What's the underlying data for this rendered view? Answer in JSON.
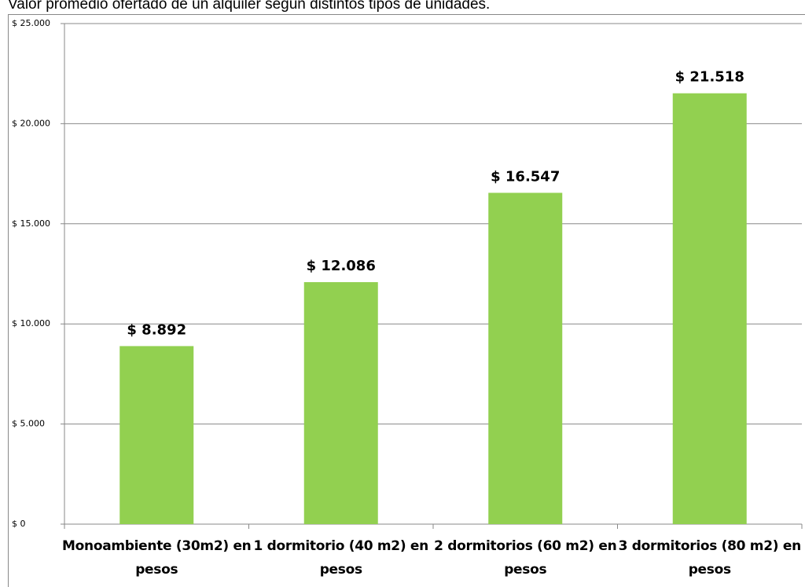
{
  "chart_data": {
    "type": "bar",
    "title": "Valor promedio ofertado de un alquiler según distintos tipos de unidades.",
    "categories": [
      "Monoambiente (30m2) en pesos",
      "1 dormitorio (40 m2) en pesos",
      "2 dormitorios (60 m2) en pesos",
      "3 dormitorios (80 m2) en pesos"
    ],
    "values": [
      8892,
      12086,
      16547,
      21518
    ],
    "value_labels": [
      "$ 8.892",
      "$ 12.086",
      "$ 16.547",
      "$ 21.518"
    ],
    "color": "#92d050",
    "ylim": [
      0,
      25000
    ],
    "yticks": [
      {
        "value": 0,
        "label": "$ 0"
      },
      {
        "value": 5000,
        "label": "$ 5.000"
      },
      {
        "value": 10000,
        "label": "$ 10.000"
      },
      {
        "value": 15000,
        "label": "$ 15.000"
      },
      {
        "value": 20000,
        "label": "$ 20.000"
      },
      {
        "value": 25000,
        "label": "$ 25.000"
      }
    ],
    "grid": true
  }
}
